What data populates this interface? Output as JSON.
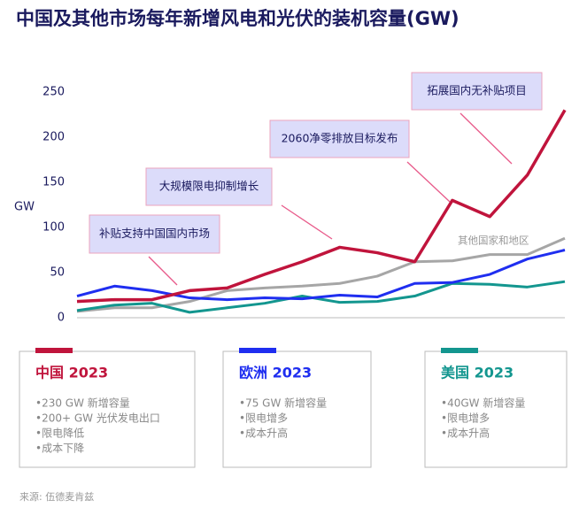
{
  "chart_data": {
    "type": "line",
    "title": "中国及其他市场每年新增风电和光伏的装机容量(GW)",
    "y_label": "GW",
    "categories": [
      null,
      null,
      null,
      null,
      null,
      null,
      null,
      null,
      null,
      null,
      null,
      null,
      null,
      null
    ],
    "ylim": [
      0,
      250
    ],
    "yticks": [
      0,
      50,
      100,
      150,
      200,
      250
    ],
    "series": [
      {
        "name": "中国 2023",
        "color": "#c0143c",
        "values": [
          18,
          20,
          20,
          30,
          33,
          48,
          62,
          78,
          72,
          62,
          130,
          112,
          158,
          230
        ],
        "notes": [
          "•230 GW 新增容量",
          "•200+ GW 光伏发电出口",
          "•限电降低",
          "•成本下降"
        ]
      },
      {
        "name": "欧洲 2023",
        "color": "#1f2ef0",
        "values": [
          24,
          35,
          30,
          22,
          20,
          22,
          21,
          25,
          23,
          38,
          39,
          48,
          65,
          75
        ],
        "notes": [
          "•75 GW 新增容量",
          "•限电增多",
          "•成本升高"
        ]
      },
      {
        "name": "美国 2023",
        "color": "#13968f",
        "values": [
          8,
          14,
          16,
          6,
          11,
          16,
          24,
          17,
          18,
          24,
          38,
          37,
          34,
          40
        ],
        "notes": [
          "•40GW 新增容量",
          "•限电增多",
          "•成本升高"
        ]
      },
      {
        "name": "其他国家和地区",
        "color": "#a6a6a6",
        "values": [
          7,
          11,
          11,
          18,
          30,
          33,
          35,
          38,
          46,
          62,
          63,
          70,
          70,
          88
        ]
      }
    ],
    "annotations": [
      "补贴支持中国国内市场",
      "大规模限电抑制增长",
      "2060净零排放目标发布",
      "拓展国内无补贴项目"
    ],
    "source": "来源: 伍德麦肯兹"
  }
}
